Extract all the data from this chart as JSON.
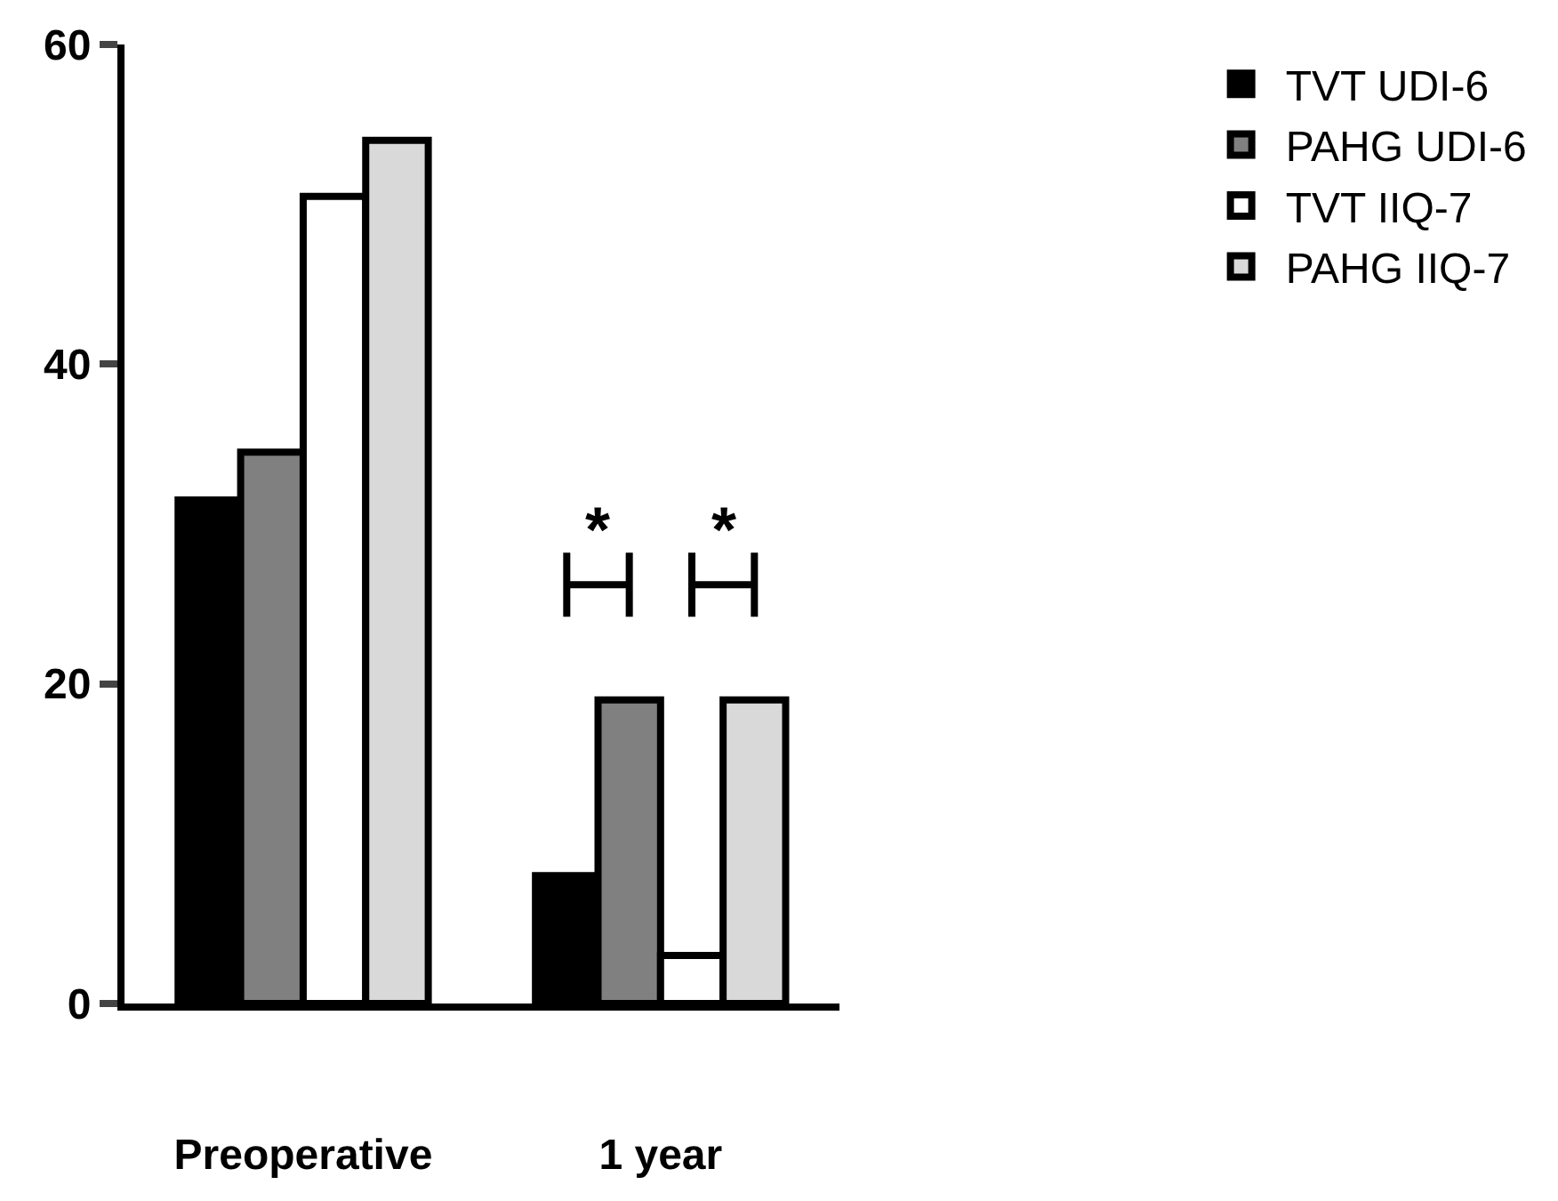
{
  "chart_data": {
    "type": "bar",
    "categories": [
      "Preoperative",
      "1 year"
    ],
    "series": [
      {
        "name": "TVT UDI-6",
        "color": "#000000",
        "values": [
          31.5,
          8
        ]
      },
      {
        "name": "PAHG UDI-6",
        "color": "#808080",
        "values": [
          34.5,
          19
        ]
      },
      {
        "name": "TVT IIQ-7",
        "color": "#ffffff",
        "values": [
          50.5,
          3
        ]
      },
      {
        "name": "PAHG IIQ-7",
        "color": "#d9d9d9",
        "values": [
          54,
          19
        ]
      }
    ],
    "ylim": [
      0,
      60
    ],
    "yticks": [
      0,
      20,
      40,
      60
    ],
    "legend": "top right",
    "annotations": [
      "*",
      "*"
    ]
  }
}
